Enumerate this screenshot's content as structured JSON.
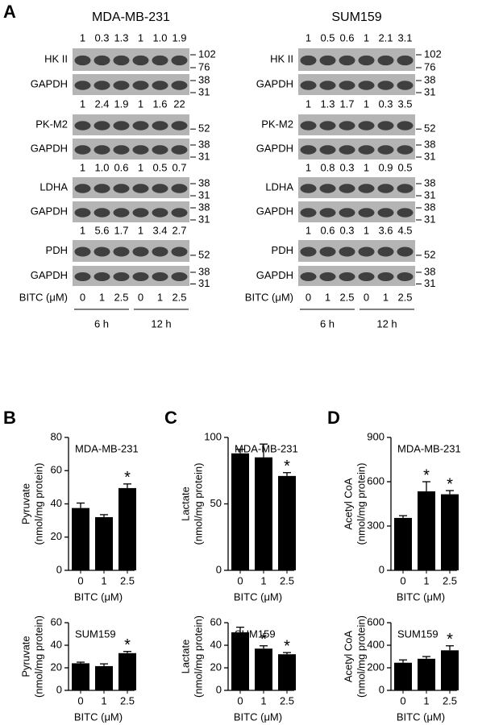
{
  "panel_labels": [
    "A",
    "B",
    "C",
    "D"
  ],
  "blots": [
    {
      "title": "MDA-MB-231",
      "rows": [
        {
          "label": "HK II",
          "ratios": [
            "1",
            "0.3",
            "1.3",
            "1",
            "1.0",
            "1.9"
          ],
          "markers": [
            "102",
            "76"
          ]
        },
        {
          "label": "GAPDH",
          "markers": [
            "38",
            "31"
          ]
        },
        {
          "label": "PK-M2",
          "ratios": [
            "1",
            "2.4",
            "1.9",
            "1",
            "1.6",
            "22"
          ],
          "markers": [
            "52"
          ]
        },
        {
          "label": "GAPDH",
          "markers": [
            "38",
            "31"
          ]
        },
        {
          "label": "LDHA",
          "ratios": [
            "1",
            "1.0",
            "0.6",
            "1",
            "0.5",
            "0.7"
          ],
          "markers": [
            "38",
            "31"
          ]
        },
        {
          "label": "GAPDH",
          "markers": [
            "38",
            "31"
          ]
        },
        {
          "label": "PDH",
          "ratios": [
            "1",
            "5.6",
            "1.7",
            "1",
            "3.4",
            "2.7"
          ],
          "markers": [
            "52"
          ]
        },
        {
          "label": "GAPDH",
          "markers": [
            "38",
            "31"
          ]
        }
      ],
      "treatment": {
        "label": "BITC (μM)",
        "doses": [
          "0",
          "1",
          "2.5",
          "0",
          "1",
          "2.5"
        ],
        "times": [
          "6 h",
          "12 h"
        ]
      }
    },
    {
      "title": "SUM159",
      "rows": [
        {
          "label": "HK II",
          "ratios": [
            "1",
            "0.5",
            "0.6",
            "1",
            "2.1",
            "3.1"
          ],
          "markers": [
            "102",
            "76"
          ]
        },
        {
          "label": "GAPDH",
          "markers": [
            "38",
            "31"
          ]
        },
        {
          "label": "PK-M2",
          "ratios": [
            "1",
            "1.3",
            "1.7",
            "1",
            "0.3",
            "3.5"
          ],
          "markers": [
            "52"
          ]
        },
        {
          "label": "GAPDH",
          "markers": [
            "38",
            "31"
          ]
        },
        {
          "label": "LDHA",
          "ratios": [
            "1",
            "0.8",
            "0.3",
            "1",
            "0.9",
            "0.5"
          ],
          "markers": [
            "38",
            "31"
          ]
        },
        {
          "label": "GAPDH",
          "markers": [
            "38",
            "31"
          ]
        },
        {
          "label": "PDH",
          "ratios": [
            "1",
            "0.6",
            "0.3",
            "1",
            "3.6",
            "4.5"
          ],
          "markers": [
            "52"
          ]
        },
        {
          "label": "GAPDH",
          "markers": [
            "38",
            "31"
          ]
        }
      ],
      "treatment": {
        "label": "BITC (μM)",
        "doses": [
          "0",
          "1",
          "2.5",
          "0",
          "1",
          "2.5"
        ],
        "times": [
          "6 h",
          "12 h"
        ]
      }
    }
  ],
  "chart_data": [
    {
      "type": "bar",
      "title": "MDA-MB-231",
      "ylabel": [
        "Pyruvate",
        "(nmol/mg protein)"
      ],
      "xlabel": "BITC (μM)",
      "categories": [
        "0",
        "1",
        "2.5"
      ],
      "values": [
        37.5,
        32,
        49.5
      ],
      "errors": [
        3,
        1.5,
        2.5
      ],
      "significance": [
        null,
        null,
        "*"
      ],
      "color": "#000000",
      "ylim": [
        0,
        80
      ],
      "yticks": [
        0,
        20,
        40,
        60,
        80
      ]
    },
    {
      "type": "bar",
      "title": "SUM159",
      "ylabel": [
        "Pyruvate",
        "(nmol/mg protein)"
      ],
      "xlabel": "BITC (μM)",
      "categories": [
        "0",
        "1",
        "2.5"
      ],
      "values": [
        24,
        21.5,
        33
      ],
      "errors": [
        1,
        2,
        1.5
      ],
      "significance": [
        null,
        null,
        "*"
      ],
      "color": "#000000",
      "ylim": [
        0,
        60
      ],
      "yticks": [
        0,
        20,
        40,
        60
      ]
    },
    {
      "type": "bar",
      "title": "MDA-MB-231",
      "ylabel": [
        "Lactate",
        "(nmol/mg protein)"
      ],
      "xlabel": "BITC (μM)",
      "categories": [
        "0",
        "1",
        "2.5"
      ],
      "values": [
        88,
        85,
        71
      ],
      "errors": [
        3,
        10,
        2.5
      ],
      "significance": [
        null,
        null,
        "*"
      ],
      "color": "#000000",
      "ylim": [
        0,
        100
      ],
      "yticks": [
        0,
        50,
        100
      ]
    },
    {
      "type": "bar",
      "title": "SUM159",
      "ylabel": [
        "Lactate",
        "(nmol/mg protein)"
      ],
      "xlabel": "BITC (μM)",
      "categories": [
        "0",
        "1",
        "2.5"
      ],
      "values": [
        51.5,
        37,
        32
      ],
      "errors": [
        4.5,
        2.5,
        1.5
      ],
      "significance": [
        null,
        "*",
        "*"
      ],
      "color": "#000000",
      "ylim": [
        0,
        60
      ],
      "yticks": [
        0,
        20,
        40,
        60
      ]
    },
    {
      "type": "bar",
      "title": "MDA-MB-231",
      "ylabel": [
        "Acetyl CoA",
        "(nmol/mg protein)"
      ],
      "xlabel": "BITC (μM)",
      "categories": [
        "0",
        "1",
        "2.5"
      ],
      "values": [
        355,
        535,
        515
      ],
      "errors": [
        15,
        65,
        25
      ],
      "significance": [
        null,
        "*",
        "*"
      ],
      "color": "#000000",
      "ylim": [
        0,
        900
      ],
      "yticks": [
        0,
        300,
        600,
        900
      ]
    },
    {
      "type": "bar",
      "title": "SUM159",
      "ylabel": [
        "Acetyl CoA",
        "(nmol/mg protein)"
      ],
      "xlabel": "BITC (μM)",
      "categories": [
        "0",
        "1",
        "2.5"
      ],
      "values": [
        245,
        280,
        355
      ],
      "errors": [
        25,
        20,
        40
      ],
      "significance": [
        null,
        null,
        "*"
      ],
      "color": "#000000",
      "ylim": [
        0,
        600
      ],
      "yticks": [
        0,
        200,
        400,
        600
      ]
    }
  ]
}
